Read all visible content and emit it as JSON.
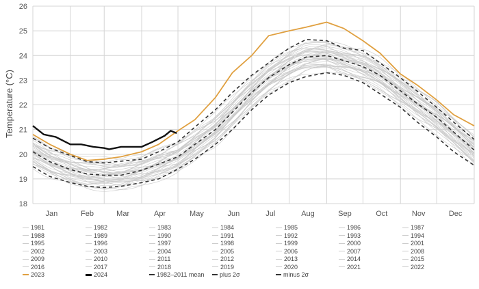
{
  "chart_data": {
    "type": "line",
    "title": "",
    "xlabel": "",
    "ylabel": "Temperature (°C)",
    "ylim": [
      18,
      26
    ],
    "yticks": [
      "18",
      "19",
      "20",
      "21",
      "22",
      "23",
      "24",
      "25",
      "26"
    ],
    "xlim_days": [
      0,
      365
    ],
    "month_labels": [
      "Jan",
      "Feb",
      "Mar",
      "Apr",
      "May",
      "Jun",
      "Jul",
      "Aug",
      "Sep",
      "Oct",
      "Nov",
      "Dec"
    ],
    "grid": true,
    "x": [
      0,
      14,
      31,
      45,
      59,
      73,
      90,
      104,
      120,
      134,
      151,
      165,
      181,
      195,
      212,
      226,
      243,
      257,
      273,
      287,
      304,
      318,
      334,
      348,
      365
    ],
    "series": [
      {
        "name": "1982–2011 mean",
        "style": "dashed",
        "color": "#333333",
        "values": [
          20.1,
          19.7,
          19.38,
          19.2,
          19.15,
          19.15,
          19.35,
          19.6,
          19.9,
          20.4,
          21.0,
          21.7,
          22.5,
          23.1,
          23.63,
          23.94,
          24.0,
          23.8,
          23.55,
          23.2,
          22.57,
          22.05,
          21.5,
          20.9,
          20.17
        ]
      },
      {
        "name": "plus 2σ",
        "style": "dashed",
        "color": "#333333",
        "values": [
          20.65,
          20.25,
          19.95,
          19.7,
          19.65,
          19.72,
          19.8,
          20.1,
          20.5,
          21.1,
          21.8,
          22.5,
          23.2,
          23.7,
          24.3,
          24.65,
          24.6,
          24.3,
          24.2,
          23.7,
          23.1,
          22.55,
          21.9,
          21.3,
          20.6
        ]
      },
      {
        "name": "minus 2σ",
        "style": "dashed",
        "color": "#333333",
        "values": [
          19.5,
          19.1,
          18.85,
          18.7,
          18.65,
          18.7,
          18.85,
          19.0,
          19.4,
          19.8,
          20.4,
          21.0,
          21.8,
          22.4,
          22.9,
          23.15,
          23.3,
          23.2,
          22.9,
          22.45,
          21.9,
          21.3,
          20.7,
          20.1,
          19.55
        ]
      },
      {
        "name": "2023",
        "style": "solid",
        "color": "#e0a040",
        "values": [
          20.8,
          20.4,
          20.0,
          19.75,
          19.8,
          19.9,
          20.1,
          20.4,
          20.95,
          21.4,
          22.3,
          23.3,
          24.0,
          24.8,
          25.0,
          25.15,
          25.35,
          25.1,
          24.6,
          24.1,
          23.25,
          22.8,
          22.2,
          21.6,
          21.15
        ]
      },
      {
        "name": "2024",
        "style": "solid",
        "color": "#111111",
        "x": [
          0,
          9,
          19,
          31,
          40,
          50,
          59,
          63,
          73,
          90,
          99,
          109,
          114,
          119
        ],
        "values": [
          21.15,
          20.8,
          20.7,
          20.4,
          20.4,
          20.3,
          20.25,
          20.2,
          20.3,
          20.3,
          20.5,
          20.75,
          20.95,
          20.85
        ]
      }
    ],
    "gray_years": [
      "1981",
      "1982",
      "1983",
      "1984",
      "1985",
      "1986",
      "1987",
      "1988",
      "1989",
      "1990",
      "1991",
      "1992",
      "1993",
      "1994",
      "1995",
      "1996",
      "1997",
      "1998",
      "1999",
      "2000",
      "2001",
      "2002",
      "2003",
      "2004",
      "2005",
      "2006",
      "2007",
      "2008",
      "2009",
      "2010",
      "2011",
      "2012",
      "2013",
      "2014",
      "2015",
      "2016",
      "2017",
      "2018",
      "2019",
      "2020",
      "2021",
      "2022"
    ],
    "gray_color": "#c8c8c8",
    "legend": {
      "placement": "bottom",
      "items": [
        "1981",
        "1982",
        "1983",
        "1984",
        "1985",
        "1986",
        "1987",
        "1988",
        "1989",
        "1990",
        "1991",
        "1992",
        "1993",
        "1994",
        "1995",
        "1996",
        "1997",
        "1998",
        "1999",
        "2000",
        "2001",
        "2002",
        "2003",
        "2004",
        "2005",
        "2006",
        "2007",
        "2008",
        "2009",
        "2010",
        "2011",
        "2012",
        "2013",
        "2014",
        "2015",
        "2016",
        "2017",
        "2018",
        "2019",
        "2020",
        "2021",
        "2022",
        "2023",
        "2024",
        "1982–2011 mean",
        "plus 2σ",
        "minus 2σ"
      ]
    }
  }
}
